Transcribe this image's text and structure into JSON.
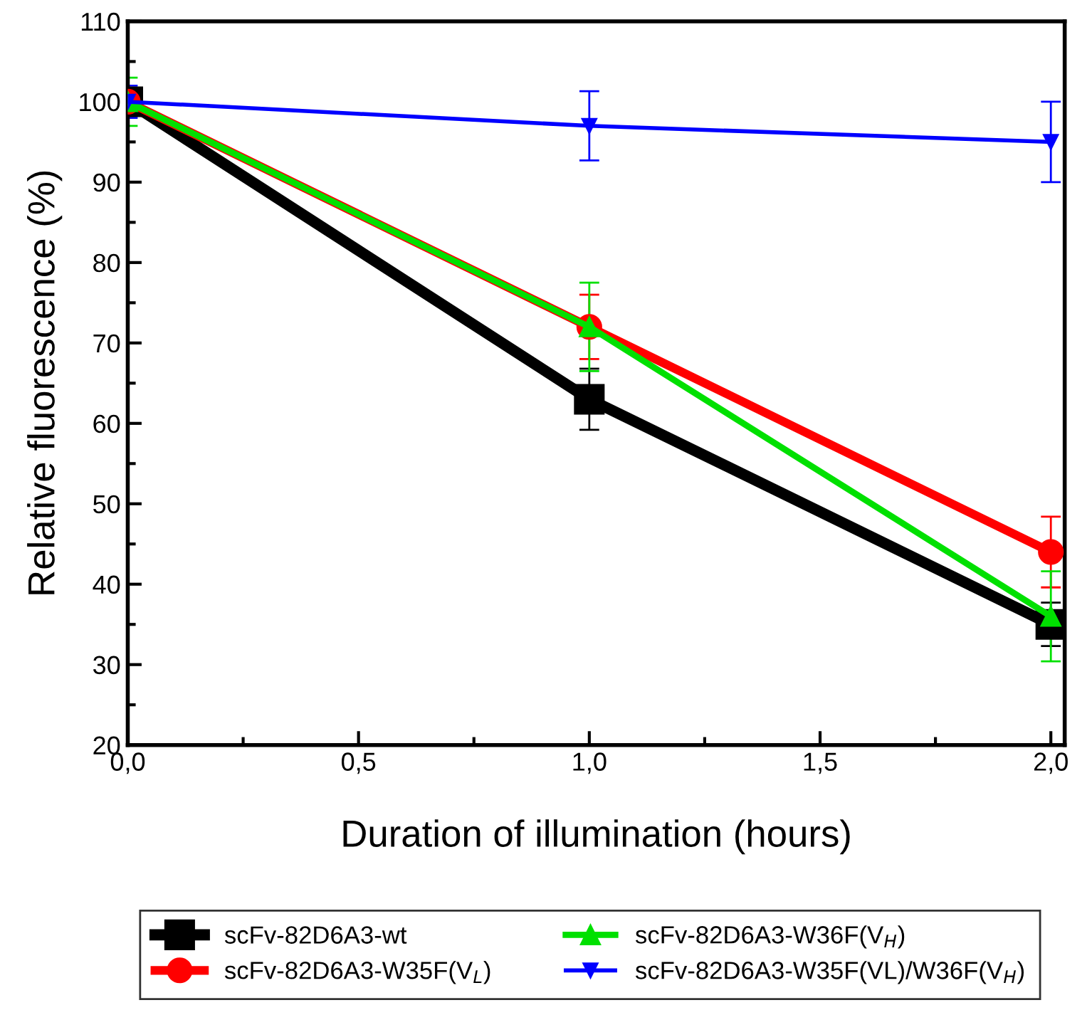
{
  "chart_data": {
    "type": "line",
    "xlabel": "Duration of illumination (hours)",
    "ylabel": "Relative fluorescence (%)",
    "x": [
      0,
      1,
      2
    ],
    "series": [
      {
        "name": "scFv-82D6A3-wt",
        "color": "#000000",
        "marker": "square",
        "values": [
          100,
          63,
          35
        ],
        "errors": [
          1,
          3.8,
          2.7
        ]
      },
      {
        "name": "scFv-82D6A3-W35F(V$_{L}$)",
        "color": "#ff0000",
        "marker": "circle",
        "values": [
          100,
          72,
          44
        ],
        "errors": [
          1,
          4,
          4.4
        ]
      },
      {
        "name": "scFv-82D6A3-W36F(V$_{H}$)",
        "color": "#00e000",
        "marker": "triangle",
        "values": [
          100,
          72,
          36
        ],
        "errors": [
          3,
          5.5,
          5.6
        ]
      },
      {
        "name": "scFv-82D6A3-W35F(VL)/W36F(V$_{H}$)",
        "color": "#0000ff",
        "marker": "triangle_down",
        "values": [
          100,
          97,
          95
        ],
        "errors": [
          2,
          4.3,
          5
        ]
      }
    ],
    "xlim": [
      0,
      2.03
    ],
    "ylim": [
      20,
      110
    ],
    "xticks": [
      {
        "value": 0,
        "label": "0,0"
      },
      {
        "value": 0.5,
        "label": "0,5"
      },
      {
        "value": 1,
        "label": "1,0"
      },
      {
        "value": 1.5,
        "label": "1,5"
      },
      {
        "value": 2,
        "label": "2,0"
      }
    ],
    "yticks": [
      20,
      30,
      40,
      50,
      60,
      70,
      80,
      90,
      100,
      110
    ],
    "grid": false,
    "legend": "bottom",
    "line_style": "solid"
  }
}
